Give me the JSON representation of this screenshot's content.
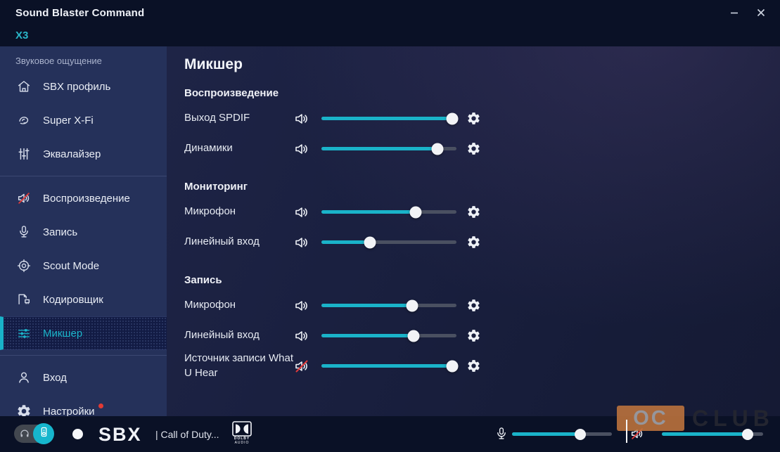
{
  "window": {
    "title": "Sound Blaster Command",
    "model": "X3"
  },
  "titlebar": {
    "buttons": [
      {
        "name": "minimize-button",
        "icon": "minimize-icon"
      },
      {
        "name": "close-button",
        "icon": "close-icon"
      }
    ]
  },
  "sidebar": {
    "section_header": "Звуковое ощущение",
    "items": [
      {
        "id": "sbx-profile",
        "label": "SBX профиль",
        "icon": "home-icon"
      },
      {
        "id": "super-x-fi",
        "label": "Super X-Fi",
        "icon": "superxfi-icon"
      },
      {
        "id": "equalizer",
        "label": "Эквалайзер",
        "icon": "equalizer-icon",
        "divider_after": true
      },
      {
        "id": "playback",
        "label": "Воспроизведение",
        "icon": "speaker-icon"
      },
      {
        "id": "recording",
        "label": "Запись",
        "icon": "microphone-icon"
      },
      {
        "id": "scout-mode",
        "label": "Scout Mode",
        "icon": "scout-icon"
      },
      {
        "id": "encoder",
        "label": "Кодировщик",
        "icon": "encoder-icon"
      },
      {
        "id": "mixer",
        "label": "Микшер",
        "icon": "mixer-icon",
        "selected": true,
        "divider_after": true
      },
      {
        "id": "login",
        "label": "Вход",
        "icon": "user-icon"
      },
      {
        "id": "settings",
        "label": "Настройки",
        "icon": "gear-icon",
        "badge": true
      }
    ]
  },
  "main": {
    "title": "Микшер",
    "sections": [
      {
        "title": "Воспроизведение",
        "rows": [
          {
            "label": "Выход SPDIF",
            "volume": 97,
            "muted": false
          },
          {
            "label": "Динамики",
            "volume": 86,
            "muted": false
          }
        ]
      },
      {
        "title": "Мониторинг",
        "rows": [
          {
            "label": "Микрофон",
            "volume": 70,
            "muted": false
          },
          {
            "label": "Линейный вход",
            "volume": 36,
            "muted": false
          }
        ]
      },
      {
        "title": "Запись",
        "rows": [
          {
            "label": "Микрофон",
            "volume": 67,
            "muted": false
          },
          {
            "label": "Линейный вход",
            "volume": 68,
            "muted": false
          },
          {
            "label": "Источник записи What U Hear",
            "volume": 97,
            "muted": true
          }
        ]
      }
    ]
  },
  "bottombar": {
    "output_toggle": {
      "left_icon": "headphones-icon",
      "right_icon": "speakers-icon",
      "active": "speakers"
    },
    "sbx_logo": "SBX",
    "profile": "| Call of Duty...",
    "dolby": {
      "line1": "DOLBY",
      "line2": "AUDIO"
    },
    "mic_volume": 68,
    "speaker_volume": 85
  },
  "watermark": {
    "left": "OC",
    "right": "CLUB"
  },
  "colors": {
    "accent_cyan": "#1ab3c9",
    "titlebar_bg": "#0a1126",
    "sidebar_bg": "#25315a",
    "main_bg": "#181e3c",
    "slider_track": "#4a5061",
    "badge_red": "#e23a34",
    "watermark_orange": "#bf743d",
    "mute_red": "#e03a3a"
  }
}
